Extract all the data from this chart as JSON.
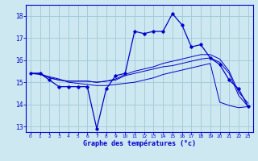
{
  "background_color": "#cde8f0",
  "grid_color": "#a0c8d8",
  "line_color": "#0000cc",
  "title": "Graphe des températures (°c)",
  "xlim": [
    -0.5,
    23.5
  ],
  "ylim": [
    12.75,
    18.5
  ],
  "yticks": [
    13,
    14,
    15,
    16,
    17,
    18
  ],
  "xticks": [
    0,
    1,
    2,
    3,
    4,
    5,
    6,
    7,
    8,
    9,
    10,
    11,
    12,
    13,
    14,
    15,
    16,
    17,
    18,
    19,
    20,
    21,
    22,
    23
  ],
  "line1_x": [
    0,
    1,
    2,
    3,
    4,
    5,
    6,
    7,
    8,
    9,
    10,
    11,
    12,
    13,
    14,
    15,
    16,
    17,
    18,
    19,
    20,
    21,
    22,
    23
  ],
  "line1_y": [
    15.4,
    15.4,
    15.1,
    14.8,
    14.8,
    14.8,
    14.8,
    12.9,
    14.7,
    15.3,
    15.4,
    17.3,
    17.2,
    17.3,
    17.3,
    18.1,
    17.6,
    16.6,
    16.7,
    16.1,
    15.8,
    15.1,
    14.7,
    13.9
  ],
  "line2_x": [
    0,
    1,
    2,
    3,
    4,
    5,
    6,
    7,
    8,
    9,
    10,
    11,
    12,
    13,
    14,
    15,
    16,
    17,
    18,
    19,
    20,
    21,
    22,
    23
  ],
  "line2_y": [
    15.4,
    15.4,
    15.2,
    15.1,
    15.05,
    15.05,
    15.05,
    15.0,
    15.05,
    15.1,
    15.3,
    15.4,
    15.5,
    15.6,
    15.7,
    15.75,
    15.85,
    15.95,
    16.05,
    16.1,
    15.9,
    15.4,
    14.4,
    13.9
  ],
  "line3_x": [
    0,
    1,
    2,
    3,
    4,
    5,
    6,
    7,
    8,
    9,
    10,
    11,
    12,
    13,
    14,
    15,
    16,
    17,
    18,
    19,
    20,
    21,
    22,
    23
  ],
  "line3_y": [
    15.4,
    15.4,
    15.2,
    15.1,
    15.05,
    15.05,
    15.05,
    15.0,
    15.05,
    15.15,
    15.35,
    15.5,
    15.6,
    15.7,
    15.85,
    15.95,
    16.05,
    16.15,
    16.25,
    16.25,
    16.05,
    15.5,
    14.55,
    14.05
  ],
  "line4_x": [
    0,
    1,
    2,
    3,
    4,
    5,
    6,
    7,
    8,
    9,
    10,
    11,
    12,
    13,
    14,
    15,
    16,
    17,
    18,
    19,
    20,
    21,
    22,
    23
  ],
  "line4_y": [
    15.4,
    15.35,
    15.25,
    15.15,
    15.0,
    14.95,
    14.9,
    14.85,
    14.85,
    14.9,
    14.95,
    15.0,
    15.1,
    15.2,
    15.35,
    15.45,
    15.55,
    15.65,
    15.75,
    15.85,
    14.1,
    13.95,
    13.85,
    13.9
  ]
}
